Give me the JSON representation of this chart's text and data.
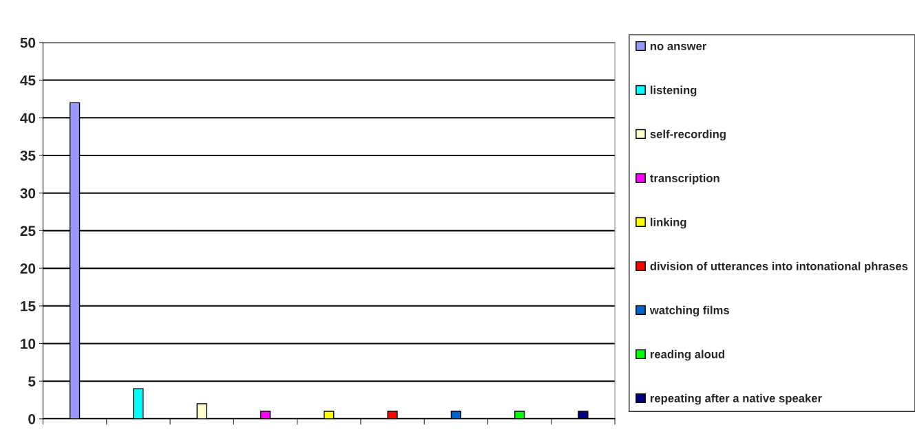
{
  "chart_data": {
    "type": "bar",
    "categories": [
      null,
      null,
      null,
      null,
      null,
      null,
      null,
      null,
      null
    ],
    "series": [
      {
        "name": "no answer",
        "color": "#9999ff",
        "values": [
          42,
          null,
          null,
          null,
          null,
          null,
          null,
          null,
          null
        ]
      },
      {
        "name": "listening",
        "color": "#00ffff",
        "values": [
          null,
          4,
          null,
          null,
          null,
          null,
          null,
          null,
          null
        ]
      },
      {
        "name": "self-recording",
        "color": "#ffffcc",
        "values": [
          null,
          null,
          2,
          null,
          null,
          null,
          null,
          null,
          null
        ]
      },
      {
        "name": "transcription",
        "color": "#ff00ff",
        "values": [
          null,
          null,
          null,
          1,
          null,
          null,
          null,
          null,
          null
        ]
      },
      {
        "name": "linking",
        "color": "#ffff00",
        "values": [
          null,
          null,
          null,
          null,
          1,
          null,
          null,
          null,
          null
        ]
      },
      {
        "name": "division of utterances into intonational phrases",
        "color": "#ff0000",
        "values": [
          null,
          null,
          null,
          null,
          null,
          1,
          null,
          null,
          null
        ]
      },
      {
        "name": "watching films",
        "color": "#0066cc",
        "values": [
          null,
          null,
          null,
          null,
          null,
          null,
          1,
          null,
          null
        ]
      },
      {
        "name": "reading aloud",
        "color": "#00ff00",
        "values": [
          null,
          null,
          null,
          null,
          null,
          null,
          null,
          1,
          null
        ]
      },
      {
        "name": "repeating after a native speaker",
        "color": "#000080",
        "values": [
          null,
          null,
          null,
          null,
          null,
          null,
          null,
          null,
          1
        ]
      }
    ],
    "ylim": [
      0,
      50
    ],
    "yticks": [
      0,
      5,
      10,
      15,
      20,
      25,
      30,
      35,
      40,
      45,
      50
    ],
    "grid": "y",
    "legend": "right",
    "tick_labels": "y"
  }
}
